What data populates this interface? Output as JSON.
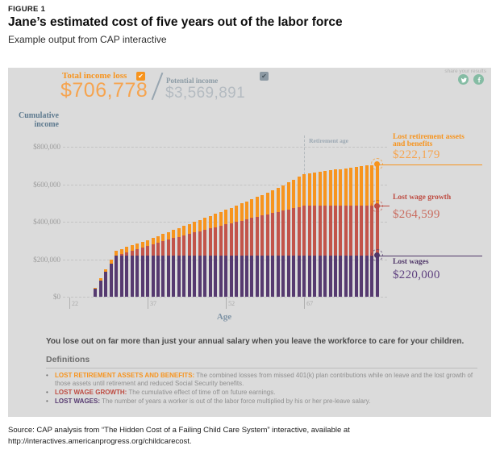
{
  "theme": {
    "orange": "#f7941e",
    "red": "#c2544a",
    "purple": "#563a70",
    "teal": "#85bca4",
    "slate": "#5e7a8f",
    "panel_bg": "#dbdbdb"
  },
  "figure": {
    "label": "FIGURE 1",
    "title": "Jane’s estimated cost of five years out of the labor force",
    "subtitle": "Example output from CAP interactive"
  },
  "panel": {
    "stats": {
      "loss": {
        "label": "Total income loss",
        "value": "$706,778",
        "checked": true,
        "checkbox_color": "#f7941e"
      },
      "potential": {
        "label": "Potential income",
        "value": "$3,569,891",
        "checked": true,
        "checkbox_color": "#8c99a3"
      }
    },
    "share": {
      "label": "share your results",
      "icons": [
        "twitter-icon",
        "facebook-icon"
      ]
    },
    "chart_data": {
      "type": "bar",
      "stacked": true,
      "ylabel_lines": [
        "Cumulative",
        "income"
      ],
      "xlabel": "Age",
      "x_ticks": [
        22,
        37,
        52,
        67
      ],
      "y_ticks": [
        "$0",
        "$200,000",
        "$400,000",
        "$600,000",
        "$800,000"
      ],
      "y_tick_values": [
        0,
        200000,
        400000,
        600000,
        800000
      ],
      "ylim": [
        0,
        850000
      ],
      "age_range": [
        27,
        81
      ],
      "retirement_age": 67,
      "retirement_age_label": "Retirement age",
      "grid": true,
      "series": [
        {
          "name": "Lost wages",
          "color": "#563a70",
          "final": 220000,
          "anchors": [
            [
              27,
              44000
            ],
            [
              31,
              220000
            ],
            [
              81,
              220000
            ]
          ]
        },
        {
          "name": "Lost wage growth",
          "color": "#c2544a",
          "final": 264599,
          "anchors": [
            [
              27,
              0
            ],
            [
              31,
              0
            ],
            [
              32,
              8000
            ],
            [
              37,
              50000
            ],
            [
              42,
              92000
            ],
            [
              47,
              130000
            ],
            [
              52,
              165000
            ],
            [
              57,
              200000
            ],
            [
              62,
              232000
            ],
            [
              67,
              264599
            ],
            [
              81,
              264599
            ]
          ]
        },
        {
          "name": "Lost retirement assets and benefits",
          "color": "#f7941e",
          "final": 222179,
          "anchors": [
            [
              27,
              4000
            ],
            [
              28,
              9000
            ],
            [
              29,
              14000
            ],
            [
              30,
              20000
            ],
            [
              31,
              26000
            ],
            [
              37,
              33000
            ],
            [
              42,
              45000
            ],
            [
              47,
              60000
            ],
            [
              52,
              78000
            ],
            [
              57,
              100000
            ],
            [
              62,
              128000
            ],
            [
              67,
              171000
            ],
            [
              72,
              190000
            ],
            [
              77,
              207000
            ],
            [
              81,
              222179
            ]
          ]
        }
      ],
      "annotations": [
        {
          "id": "lost-retirement",
          "title_lines": [
            "Lost retirement assets",
            "and benefits"
          ],
          "value": "$222,179",
          "level": 706778,
          "color": "#f7941e",
          "value_color": "#f6a44f"
        },
        {
          "id": "lost-wage-growth",
          "title_lines": [
            "Lost wage growth"
          ],
          "value": "$264,599",
          "level": 484599,
          "color": "#be4b41",
          "value_color": "#c96b5e"
        },
        {
          "id": "lost-wages",
          "title_lines": [
            "Lost wages"
          ],
          "value": "$220,000",
          "level": 220000,
          "color": "#4f3668",
          "value_color": "#5f4180"
        }
      ]
    },
    "statement": "You lose out on far more than just your annual salary when you leave the workforce to care for your children.",
    "definitions": {
      "heading": "Definitions",
      "items": [
        {
          "term": "LOST RETIREMENT ASSETS AND BENEFITS:",
          "color": "#f7941e",
          "text": "The combined losses from missed 401(k) plan contributions while on leave and the lost growth of those assets until retirement and reduced Social Security benefits."
        },
        {
          "term": "LOST WAGE GROWTH:",
          "color": "#be4b41",
          "text": "The cumulative effect of time off on future earnings."
        },
        {
          "term": "LOST WAGES:",
          "color": "#563a70",
          "text": "The number of years a worker is out of the labor force multiplied by his or her pre-leave salary."
        }
      ]
    }
  },
  "source": "Source: CAP analysis from “The Hidden Cost of a Failing Child Care System” interactive, available at http://interactives.americanprogress.org/childcarecost."
}
